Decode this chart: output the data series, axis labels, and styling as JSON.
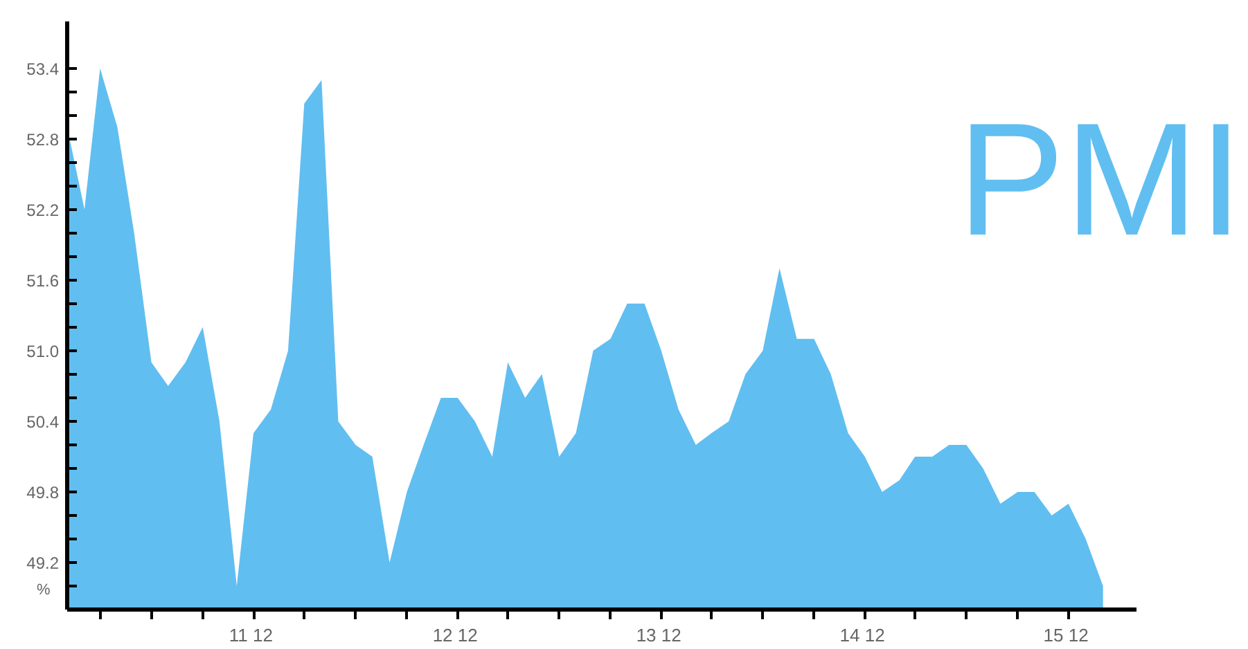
{
  "chart_data": {
    "type": "area",
    "title": "PMI",
    "ylabel": "%",
    "x": [
      "2011-01",
      "2011-02",
      "2011-03",
      "2011-04",
      "2011-05",
      "2011-06",
      "2011-07",
      "2011-08",
      "2011-09",
      "2011-10",
      "2011-11",
      "2011-12",
      "2012-01",
      "2012-02",
      "2012-03",
      "2012-04",
      "2012-05",
      "2012-06",
      "2012-07",
      "2012-08",
      "2012-09",
      "2012-10",
      "2012-11",
      "2012-12",
      "2013-01",
      "2013-02",
      "2013-03",
      "2013-04",
      "2013-05",
      "2013-06",
      "2013-07",
      "2013-08",
      "2013-09",
      "2013-10",
      "2013-11",
      "2013-12",
      "2014-01",
      "2014-02",
      "2014-03",
      "2014-04",
      "2014-05",
      "2014-06",
      "2014-07",
      "2014-08",
      "2014-09",
      "2014-10",
      "2014-11",
      "2014-12",
      "2015-01",
      "2015-02",
      "2015-03",
      "2015-04",
      "2015-05",
      "2015-06",
      "2015-07",
      "2015-08",
      "2015-09",
      "2015-10",
      "2015-11",
      "2015-12",
      "2016-01",
      "2016-02"
    ],
    "series": [
      {
        "color": "#61bef0",
        "values": [
          52.9,
          52.2,
          53.4,
          52.9,
          52.0,
          50.9,
          50.7,
          50.9,
          51.2,
          50.4,
          49.0,
          50.3,
          50.5,
          51.0,
          53.1,
          53.3,
          50.4,
          50.2,
          50.1,
          49.2,
          49.8,
          50.2,
          50.6,
          50.6,
          50.4,
          50.1,
          50.9,
          50.6,
          50.8,
          50.1,
          50.3,
          51.0,
          51.1,
          51.4,
          51.4,
          51.0,
          50.5,
          50.2,
          50.3,
          50.4,
          50.8,
          51.0,
          51.7,
          51.1,
          51.1,
          50.8,
          50.3,
          50.1,
          49.8,
          49.9,
          50.1,
          50.1,
          50.2,
          50.2,
          50.0,
          49.7,
          49.8,
          49.8,
          49.6,
          49.7,
          49.4,
          49.0
        ]
      }
    ],
    "xlim": [
      "2011-01",
      "2016-04"
    ],
    "xticks": [
      {
        "value": "2011-03",
        "label": null
      },
      {
        "value": "2011-06",
        "label": null
      },
      {
        "value": "2011-09",
        "label": null
      },
      {
        "value": "2011-12",
        "label": "11  12"
      },
      {
        "value": "2012-03",
        "label": null
      },
      {
        "value": "2012-06",
        "label": null
      },
      {
        "value": "2012-09",
        "label": null
      },
      {
        "value": "2012-12",
        "label": "12  12"
      },
      {
        "value": "2013-03",
        "label": null
      },
      {
        "value": "2013-06",
        "label": null
      },
      {
        "value": "2013-09",
        "label": null
      },
      {
        "value": "2013-12",
        "label": "13  12"
      },
      {
        "value": "2014-03",
        "label": null
      },
      {
        "value": "2014-06",
        "label": null
      },
      {
        "value": "2014-09",
        "label": null
      },
      {
        "value": "2014-12",
        "label": "14  12"
      },
      {
        "value": "2015-03",
        "label": null
      },
      {
        "value": "2015-06",
        "label": null
      },
      {
        "value": "2015-09",
        "label": null
      },
      {
        "value": "2015-12",
        "label": "15  12"
      }
    ],
    "ylim": [
      48.8,
      53.8
    ],
    "yticks": [
      {
        "value": 49.0,
        "label": null
      },
      49.2,
      {
        "value": 49.4,
        "label": null
      },
      {
        "value": 49.6,
        "label": null
      },
      49.8,
      {
        "value": 50.0,
        "label": null
      },
      {
        "value": 50.2,
        "label": null
      },
      50.4,
      {
        "value": 50.6,
        "label": null
      },
      {
        "value": 50.8,
        "label": null
      },
      {
        "value": 51.0,
        "label": "51.0"
      },
      {
        "value": 51.2,
        "label": null
      },
      {
        "value": 51.4,
        "label": null
      },
      51.6,
      {
        "value": 51.8,
        "label": null
      },
      {
        "value": 52.0,
        "label": null
      },
      52.2,
      {
        "value": 52.4,
        "label": null
      },
      {
        "value": 52.6,
        "label": null
      },
      52.8,
      {
        "value": 53.0,
        "label": null
      },
      {
        "value": 53.2,
        "label": null
      },
      53.4
    ],
    "grid": false
  }
}
